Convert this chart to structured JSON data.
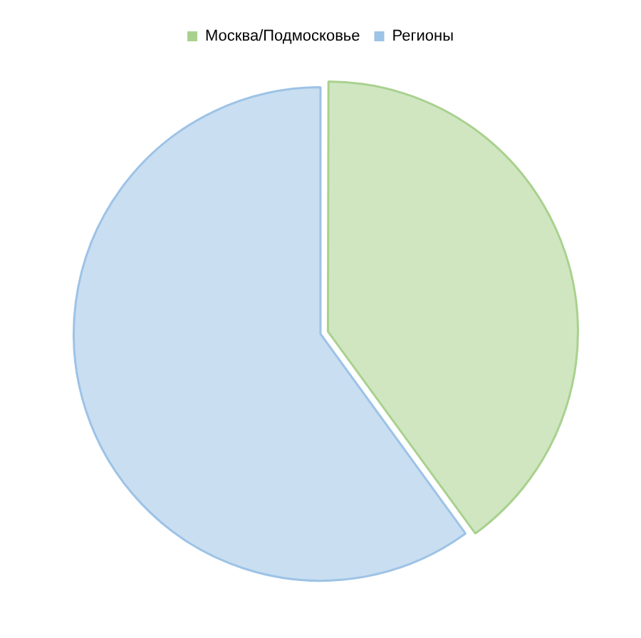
{
  "chart_data": {
    "type": "pie",
    "categories": [
      "Москва/Подмосковье",
      "Регионы"
    ],
    "values": [
      40,
      60
    ],
    "colors": [
      "#a9d18e",
      "#9dc3e6"
    ],
    "legend": "top"
  }
}
